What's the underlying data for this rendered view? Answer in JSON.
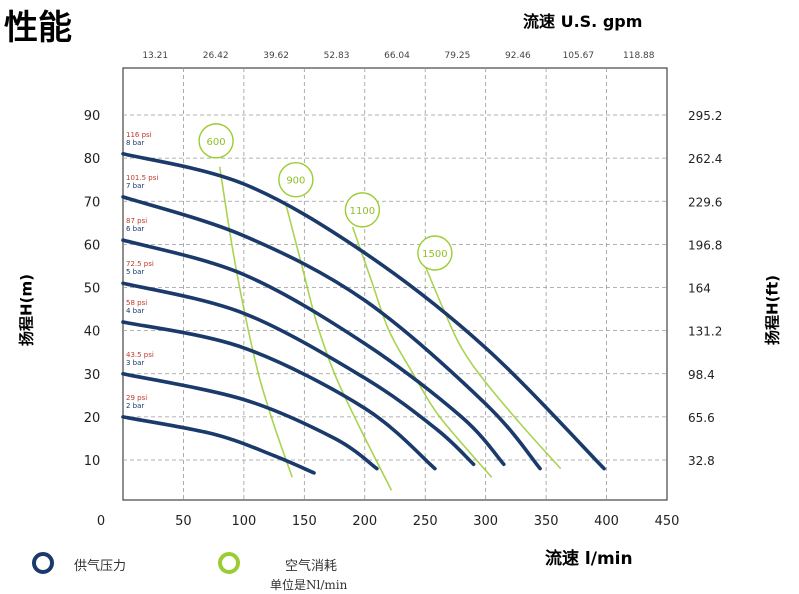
{
  "page_title": "性能",
  "axis_titles": {
    "top": "流速 U.S. gpm",
    "bottom": "流速 l/min",
    "left": "扬程H(m)",
    "right": "扬程H(ft)"
  },
  "legend": {
    "pressure_label": "供气压力",
    "air_label": "空气消耗",
    "air_unit": "单位是Nl/min",
    "pressure_color": "#1a3a6b",
    "air_color": "#9acd32"
  },
  "chart_data": {
    "type": "line",
    "xlabel": "流速 l/min",
    "x2label": "流速 U.S. gpm",
    "ylabel": "扬程H(m)",
    "y2label": "扬程H(ft)",
    "xlim": [
      0,
      450
    ],
    "ylim": [
      0,
      95
    ],
    "grid": true,
    "x_ticks": [
      "0",
      "50",
      "100",
      "150",
      "200",
      "250",
      "300",
      "350",
      "400",
      "450"
    ],
    "x2_ticks": [
      "13.21",
      "26.42",
      "39.62",
      "52.83",
      "66.04",
      "79.25",
      "92.46",
      "105.67",
      "118.88"
    ],
    "y_ticks": [
      "10",
      "20",
      "30",
      "40",
      "50",
      "60",
      "70",
      "80",
      "90"
    ],
    "y2_ticks": [
      "32.8",
      "65.6",
      "98.4",
      "131.2",
      "164",
      "196.8",
      "229.6",
      "262.4",
      "295.2"
    ],
    "series": [
      {
        "name": "116 psi / 8 bar",
        "label_psi": "116 psi",
        "label_bar": "8 bar",
        "kind": "pressure",
        "x": [
          0,
          100,
          200,
          300,
          398
        ],
        "y": [
          81,
          74,
          58,
          36,
          8
        ]
      },
      {
        "name": "101.5 psi / 7 bar",
        "label_psi": "101.5 psi",
        "label_bar": "7 bar",
        "kind": "pressure",
        "x": [
          0,
          100,
          200,
          300,
          345
        ],
        "y": [
          71,
          62,
          47,
          23,
          8
        ]
      },
      {
        "name": "87 psi / 6 bar",
        "label_psi": "87 psi",
        "label_bar": "6 bar",
        "kind": "pressure",
        "x": [
          0,
          100,
          200,
          280,
          315
        ],
        "y": [
          61,
          53,
          37,
          20,
          9
        ]
      },
      {
        "name": "72.5 psi / 5 bar",
        "label_psi": "72.5 psi",
        "label_bar": "5 bar",
        "kind": "pressure",
        "x": [
          0,
          100,
          200,
          260,
          290
        ],
        "y": [
          51,
          44,
          29,
          17,
          9
        ]
      },
      {
        "name": "58 psi / 4 bar",
        "label_psi": "58 psi",
        "label_bar": "4 bar",
        "kind": "pressure",
        "x": [
          0,
          100,
          200,
          258
        ],
        "y": [
          42,
          36,
          22,
          8
        ]
      },
      {
        "name": "43.5 psi / 3 bar",
        "label_psi": "43.5 psi",
        "label_bar": "3 bar",
        "kind": "pressure",
        "x": [
          0,
          100,
          175,
          210
        ],
        "y": [
          30,
          24,
          15,
          8
        ]
      },
      {
        "name": "29 psi / 2 bar",
        "label_psi": "29 psi",
        "label_bar": "2 bar",
        "kind": "pressure",
        "x": [
          0,
          75,
          125,
          158
        ],
        "y": [
          20,
          16,
          11,
          7
        ]
      },
      {
        "name": "600",
        "kind": "air",
        "x": [
          80,
          90,
          100,
          112,
          125,
          140
        ],
        "y": [
          78,
          60,
          45,
          30,
          18,
          6
        ]
      },
      {
        "name": "900",
        "kind": "air",
        "x": [
          135,
          148,
          160,
          175,
          195,
          222
        ],
        "y": [
          69,
          55,
          42,
          30,
          18,
          3
        ]
      },
      {
        "name": "1100",
        "kind": "air",
        "x": [
          190,
          205,
          220,
          240,
          262,
          305
        ],
        "y": [
          64,
          52,
          40,
          30,
          20,
          6
        ]
      },
      {
        "name": "1500",
        "kind": "air",
        "x": [
          250,
          265,
          280,
          300,
          330,
          362
        ],
        "y": [
          55,
          45,
          36,
          28,
          18,
          8
        ]
      }
    ],
    "air_bubbles": [
      {
        "label": "600",
        "x": 77,
        "y": 84
      },
      {
        "label": "900",
        "x": 143,
        "y": 75
      },
      {
        "label": "1100",
        "x": 198,
        "y": 68
      },
      {
        "label": "1500",
        "x": 258,
        "y": 58
      }
    ]
  }
}
